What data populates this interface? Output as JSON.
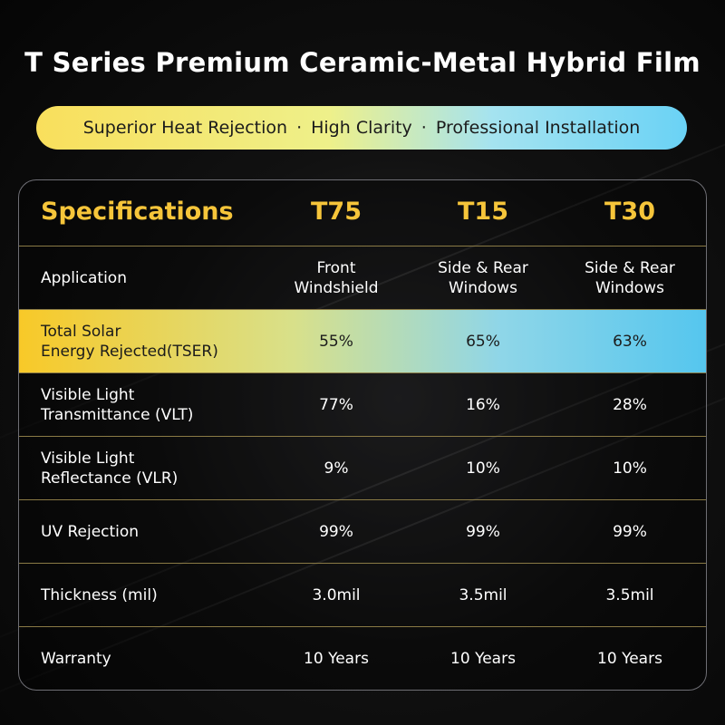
{
  "header": {
    "title": "T Series Premium Ceramic-Metal Hybrid Film",
    "tagline": [
      "Superior Heat Rejection",
      "·",
      "High Clarity",
      "·",
      "Professional Installation"
    ]
  },
  "table": {
    "columns": [
      "Specifications",
      "T75",
      "T15",
      "T30"
    ],
    "rows": [
      [
        "Application",
        "Front\nWindshield",
        "Side & Rear\nWindows",
        "Side & Rear\nWindows"
      ],
      [
        "Total Solar\nEnergy Rejected(TSER)",
        "55%",
        "65%",
        "63%"
      ],
      [
        "Visible Light\nTransmittance (VLT)",
        "77%",
        "16%",
        "28%"
      ],
      [
        "Visible Light\nReflectance (VLR)",
        "9%",
        "10%",
        "10%"
      ],
      [
        "UV Rejection",
        "99%",
        "99%",
        "99%"
      ],
      [
        "Thickness (mil)",
        "3.0mil",
        "3.5mil",
        "3.5mil"
      ],
      [
        "Warranty",
        "10 Years",
        "10 Years",
        "10 Years"
      ]
    ]
  }
}
